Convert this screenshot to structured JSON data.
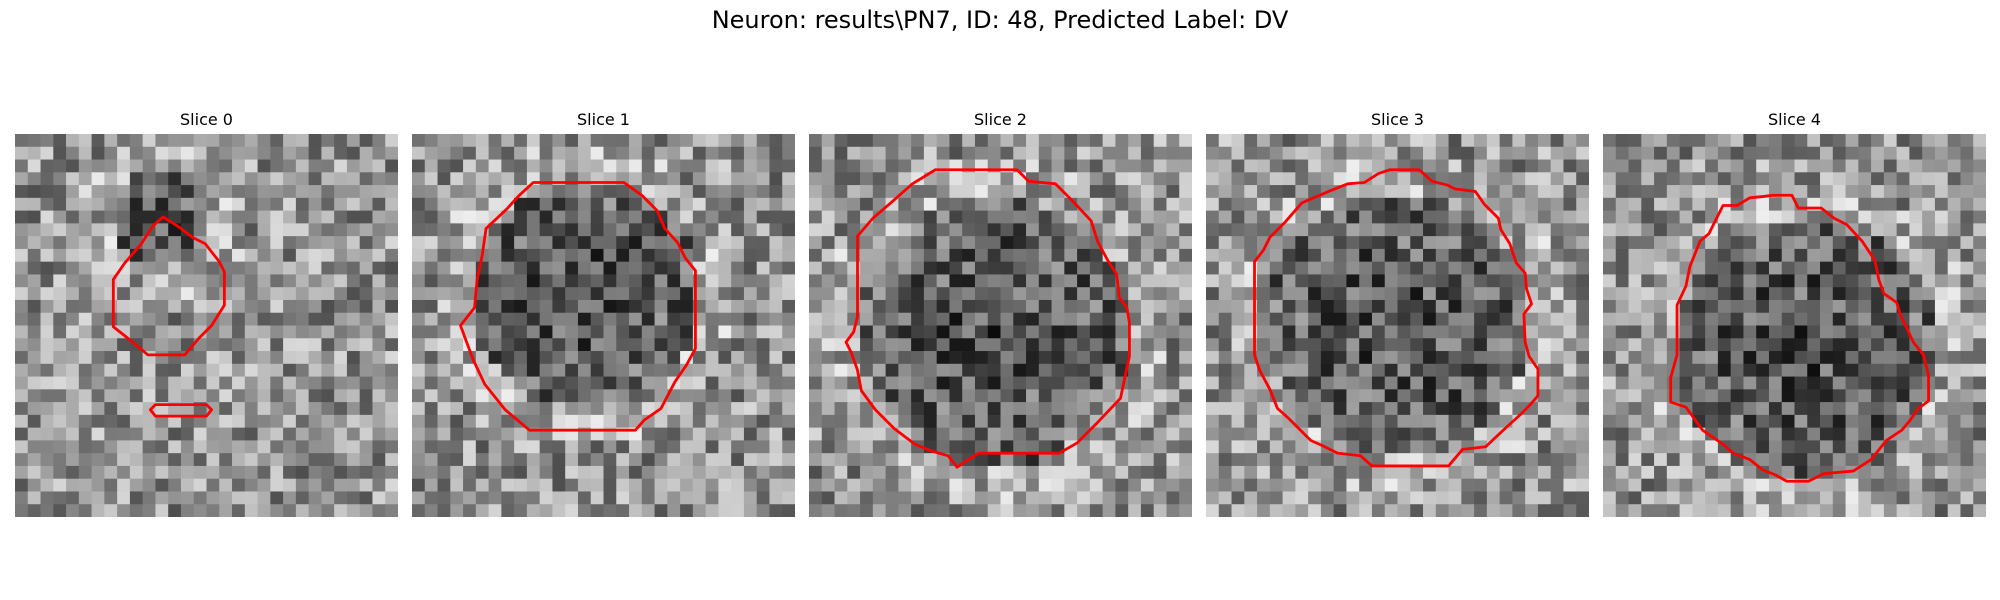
{
  "figure": {
    "title": "Neuron: results\\PN7, ID: 48, Predicted Label: DV"
  },
  "colors": {
    "contour": "#ff0000",
    "background": "#ffffff"
  },
  "slices": [
    {
      "title": "Slice 0"
    },
    {
      "title": "Slice 1"
    },
    {
      "title": "Slice 2"
    },
    {
      "title": "Slice 3"
    },
    {
      "title": "Slice 4"
    }
  ]
}
